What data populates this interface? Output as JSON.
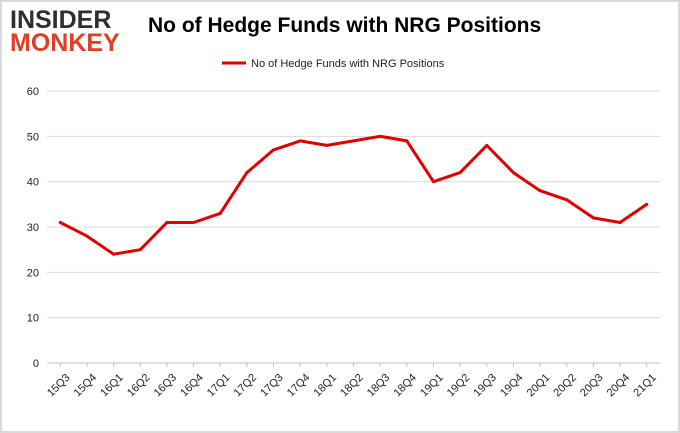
{
  "logo": {
    "line1": "INSIDER",
    "line2": "MONKEY"
  },
  "chart_data": {
    "type": "line",
    "title": "No of Hedge Funds with NRG Positions",
    "xlabel": "",
    "ylabel": "",
    "categories": [
      "15Q3",
      "15Q4",
      "16Q1",
      "16Q2",
      "16Q3",
      "16Q4",
      "17Q1",
      "17Q2",
      "17Q3",
      "17Q4",
      "18Q1",
      "18Q2",
      "18Q3",
      "18Q4",
      "19Q1",
      "19Q2",
      "19Q3",
      "19Q4",
      "20Q1",
      "20Q2",
      "20Q3",
      "20Q4",
      "21Q1"
    ],
    "series": [
      {
        "name": "No of Hedge Funds with NRG Positions",
        "color": "#e00000",
        "values": [
          31,
          28,
          24,
          25,
          31,
          31,
          33,
          42,
          47,
          49,
          48,
          49,
          50,
          49,
          40,
          42,
          48,
          42,
          38,
          36,
          32,
          31,
          35
        ]
      }
    ],
    "ylim": [
      0,
      60
    ],
    "yticks": [
      0,
      10,
      20,
      30,
      40,
      50,
      60
    ],
    "grid": true,
    "legend": "top-center"
  }
}
